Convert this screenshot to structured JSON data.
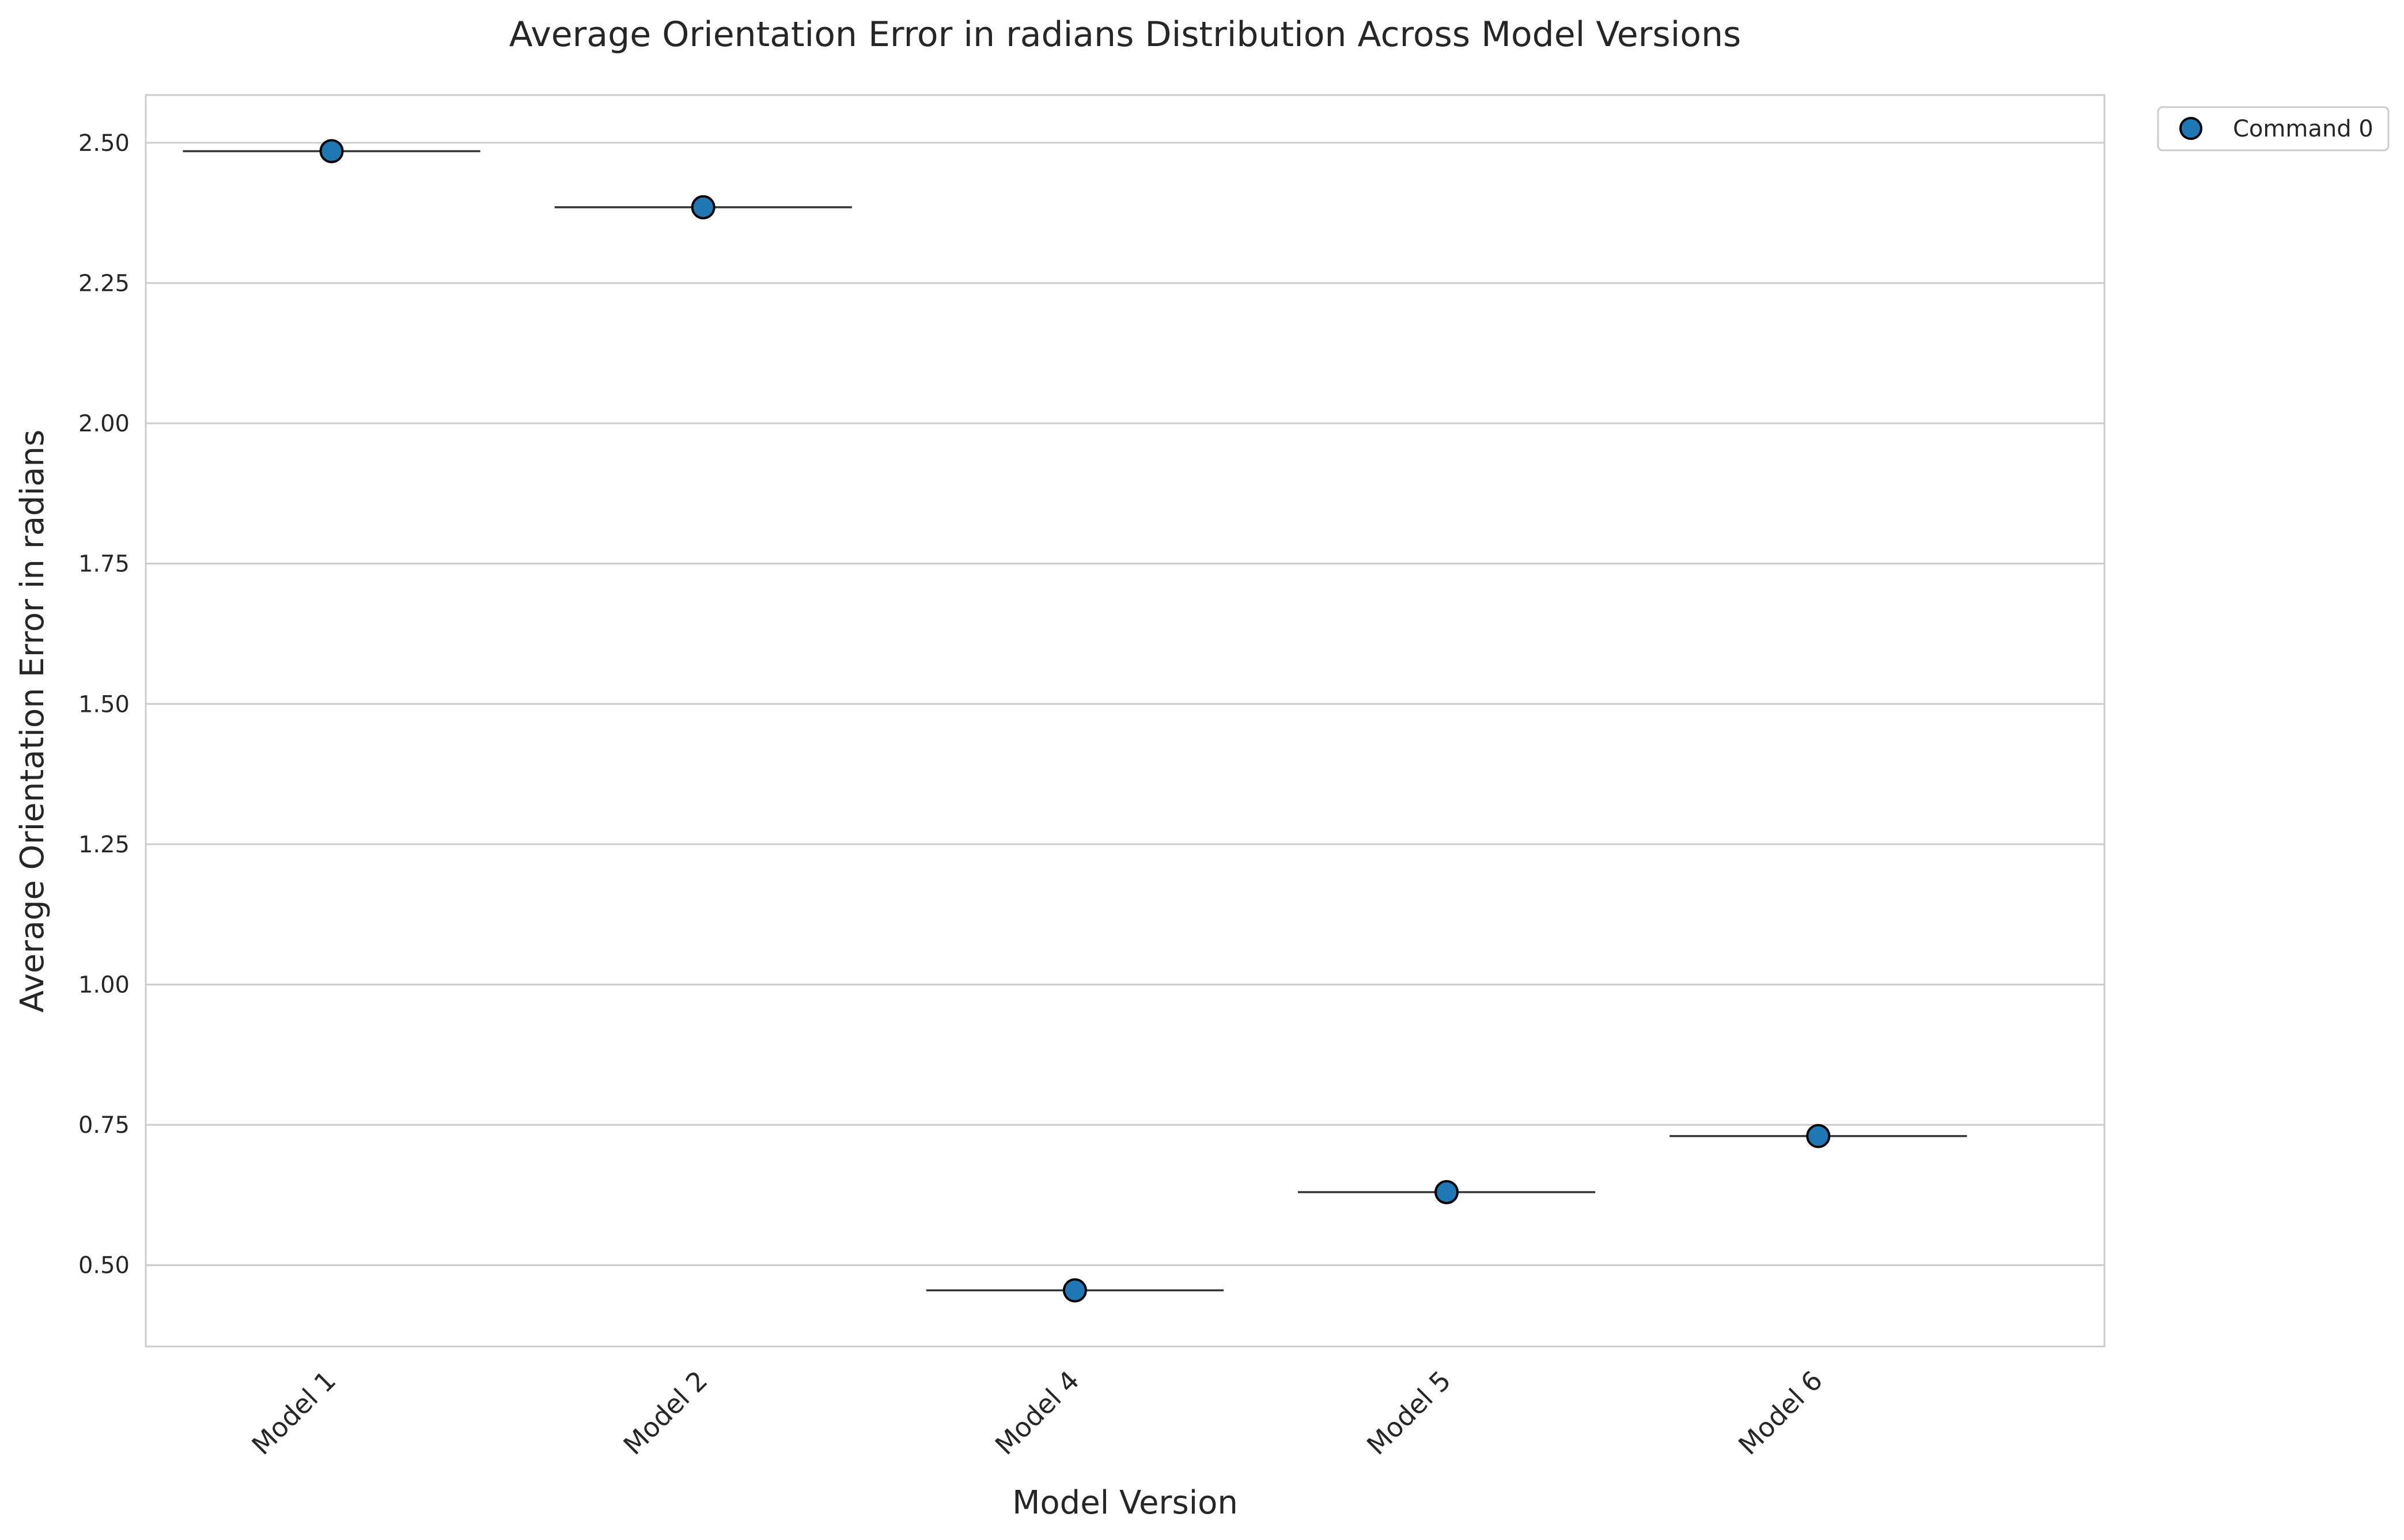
{
  "chart_data": {
    "type": "scatter",
    "title": "Average Orientation Error in radians Distribution Across Model Versions",
    "xlabel": "Model Version",
    "ylabel": "Average Orientation Error in radians",
    "categories": [
      "Model 1",
      "Model 2",
      "Model 4",
      "Model 5",
      "Model 6"
    ],
    "ylim": [
      0.355,
      2.585
    ],
    "yticks": [
      0.5,
      0.75,
      1.0,
      1.25,
      1.5,
      1.75,
      2.0,
      2.25,
      2.5
    ],
    "ytick_labels": [
      "0.50",
      "0.75",
      "1.00",
      "1.25",
      "1.50",
      "1.75",
      "2.00",
      "2.25",
      "2.50"
    ],
    "grid": "horizontal",
    "legend_position": "outside-top-right",
    "series": [
      {
        "name": "Command 0",
        "color": "#1f77b4",
        "values": [
          2.485,
          2.385,
          0.455,
          0.63,
          0.73
        ]
      }
    ],
    "median_lines": [
      2.485,
      2.385,
      0.455,
      0.63,
      0.73
    ],
    "colors": {
      "grid": "#cccccc",
      "axes_edge": "#cccccc",
      "text": "#262626",
      "marker_edge": "#000000",
      "median_line": "#333333"
    }
  }
}
